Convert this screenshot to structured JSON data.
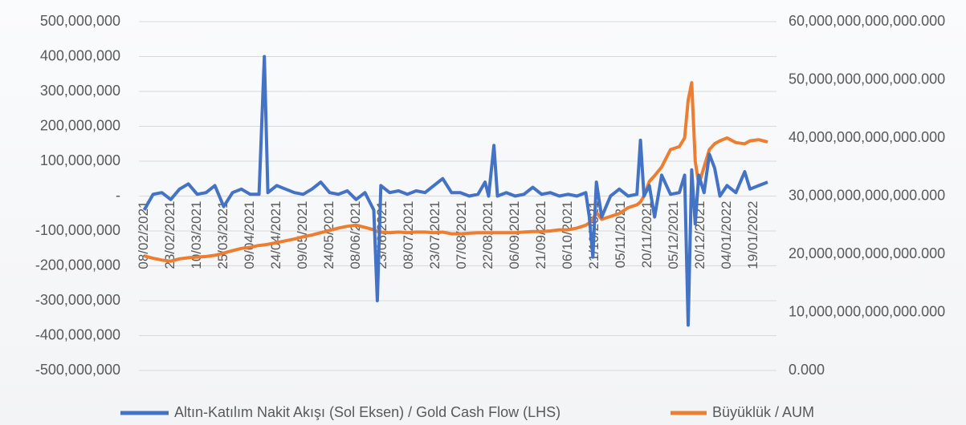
{
  "chart_data": {
    "type": "line",
    "x": [
      "08/02/2021",
      "13/02/2021",
      "18/02/2021",
      "23/02/2021",
      "28/02/2021",
      "05/03/2021",
      "10/03/2021",
      "15/03/2021",
      "20/03/2021",
      "25/03/2021",
      "30/03/2021",
      "04/04/2021",
      "09/04/2021",
      "14/04/2021",
      "17/04/2021",
      "19/04/2021",
      "24/04/2021",
      "29/04/2021",
      "04/05/2021",
      "09/05/2021",
      "14/05/2021",
      "19/05/2021",
      "24/05/2021",
      "29/05/2021",
      "03/06/2021",
      "08/06/2021",
      "13/06/2021",
      "18/06/2021",
      "20/06/2021",
      "22/06/2021",
      "27/06/2021",
      "02/07/2021",
      "07/07/2021",
      "12/07/2021",
      "17/07/2021",
      "22/07/2021",
      "27/07/2021",
      "01/08/2021",
      "06/08/2021",
      "11/08/2021",
      "16/08/2021",
      "20/08/2021",
      "22/08/2021",
      "25/08/2021",
      "27/08/2021",
      "01/09/2021",
      "06/09/2021",
      "11/09/2021",
      "16/09/2021",
      "21/09/2021",
      "26/09/2021",
      "01/10/2021",
      "06/10/2021",
      "11/10/2021",
      "16/10/2021",
      "18/10/2021",
      "20/10/2021",
      "22/10/2021",
      "25/10/2021",
      "30/10/2021",
      "04/11/2021",
      "09/11/2021",
      "14/11/2021",
      "16/11/2021",
      "18/11/2021",
      "21/11/2021",
      "24/11/2021",
      "28/11/2021",
      "03/12/2021",
      "08/12/2021",
      "11/12/2021",
      "13/12/2021",
      "15/12/2021",
      "17/12/2021",
      "19/12/2021",
      "22/12/2021",
      "25/12/2021",
      "28/12/2021",
      "31/12/2021",
      "04/01/2022",
      "09/01/2022",
      "14/01/2022",
      "17/01/2022",
      "22/01/2022",
      "27/01/2022"
    ],
    "series": [
      {
        "name": "Altın-Katılım Nakit Akışı (Sol Eksen) / Gold Cash Flow (LHS)",
        "color": "#4472c4",
        "axis": "y",
        "values": [
          -40000000,
          5000000,
          10000000,
          -10000000,
          20000000,
          35000000,
          5000000,
          10000000,
          30000000,
          -30000000,
          10000000,
          20000000,
          5000000,
          5000000,
          400000000,
          10000000,
          30000000,
          20000000,
          10000000,
          5000000,
          20000000,
          40000000,
          10000000,
          5000000,
          15000000,
          -10000000,
          10000000,
          -40000000,
          -300000000,
          30000000,
          10000000,
          15000000,
          5000000,
          15000000,
          10000000,
          30000000,
          50000000,
          10000000,
          10000000,
          0,
          5000000,
          40000000,
          0,
          145000000,
          0,
          10000000,
          0,
          5000000,
          25000000,
          5000000,
          10000000,
          0,
          5000000,
          0,
          10000000,
          -60000000,
          -175000000,
          40000000,
          -60000000,
          0,
          20000000,
          0,
          5000000,
          160000000,
          0,
          30000000,
          -60000000,
          60000000,
          5000000,
          10000000,
          60000000,
          -370000000,
          75000000,
          -80000000,
          60000000,
          10000000,
          120000000,
          80000000,
          0,
          30000000,
          10000000,
          70000000,
          20000000,
          30000000,
          40000000
        ]
      },
      {
        "name": "Büyüklük / AUM",
        "color": "#ed7d31",
        "axis": "y2",
        "values": [
          19700000000000,
          19300000000000,
          19000000000000,
          18800000000000,
          19200000000000,
          19400000000000,
          19500000000000,
          19600000000000,
          19800000000000,
          20200000000000,
          20600000000000,
          21000000000000,
          21200000000000,
          21500000000000,
          21600000000000,
          21700000000000,
          22000000000000,
          22300000000000,
          22600000000000,
          23000000000000,
          23300000000000,
          23700000000000,
          24100000000000,
          24500000000000,
          24800000000000,
          25000000000000,
          24600000000000,
          24200000000000,
          23900000000000,
          23800000000000,
          23700000000000,
          23800000000000,
          23700000000000,
          23800000000000,
          23800000000000,
          23700000000000,
          23800000000000,
          23500000000000,
          23500000000000,
          23600000000000,
          23700000000000,
          23700000000000,
          23700000000000,
          23700000000000,
          23700000000000,
          23700000000000,
          23700000000000,
          23800000000000,
          23900000000000,
          23900000000000,
          24000000000000,
          24200000000000,
          24200000000000,
          24500000000000,
          25000000000000,
          25400000000000,
          26000000000000,
          27200000000000,
          26000000000000,
          26500000000000,
          27000000000000,
          28000000000000,
          28500000000000,
          29000000000000,
          30000000000000,
          32500000000000,
          33500000000000,
          35000000000000,
          38000000000000,
          38500000000000,
          40000000000000,
          46500000000000,
          49500000000000,
          36000000000000,
          32000000000000,
          35000000000000,
          38000000000000,
          39000000000000,
          39500000000000,
          40000000000000,
          39200000000000,
          39000000000000,
          39500000000000,
          39700000000000,
          39300000000000
        ]
      }
    ],
    "xlim": [
      "05/02/2021",
      "01/02/2022"
    ],
    "xticks": [
      "08/02/2021",
      "23/02/2021",
      "10/03/2021",
      "25/03/2021",
      "09/04/2021",
      "24/04/2021",
      "09/05/2021",
      "24/05/2021",
      "08/06/2021",
      "23/06/2021",
      "08/07/2021",
      "23/07/2021",
      "07/08/2021",
      "22/08/2021",
      "06/09/2021",
      "21/09/2021",
      "06/10/2021",
      "21/10/2021",
      "05/11/2021",
      "20/11/2021",
      "05/12/2021",
      "20/12/2021",
      "04/01/2022",
      "19/01/2022"
    ],
    "ylim": [
      -500000000,
      500000000
    ],
    "yticks": [
      {
        "value": -500000000,
        "label": "-500,000,000"
      },
      {
        "value": -400000000,
        "label": "-400,000,000"
      },
      {
        "value": -300000000,
        "label": "-300,000,000"
      },
      {
        "value": -200000000,
        "label": "-200,000,000"
      },
      {
        "value": -100000000,
        "label": "-100,000,000"
      },
      {
        "value": 0,
        "label": "-"
      },
      {
        "value": 100000000,
        "label": "100,000,000"
      },
      {
        "value": 200000000,
        "label": "200,000,000"
      },
      {
        "value": 300000000,
        "label": "300,000,000"
      },
      {
        "value": 400000000,
        "label": "400,000,000"
      },
      {
        "value": 500000000,
        "label": "500,000,000"
      }
    ],
    "y2lim": [
      0,
      60000000000000
    ],
    "y2ticks": [
      {
        "value": 0,
        "label": "0.000"
      },
      {
        "value": 10000000000000,
        "label": "10,000,000,000,000.000"
      },
      {
        "value": 20000000000000,
        "label": "20,000,000,000,000.000"
      },
      {
        "value": 30000000000000,
        "label": "30,000,000,000,000.000"
      },
      {
        "value": 40000000000000,
        "label": "40,000,000,000,000.000"
      },
      {
        "value": 50000000000000,
        "label": "50,000,000,000,000.000"
      },
      {
        "value": 60000000000000,
        "label": "60,000,000,000,000.000"
      }
    ],
    "grid": true
  }
}
